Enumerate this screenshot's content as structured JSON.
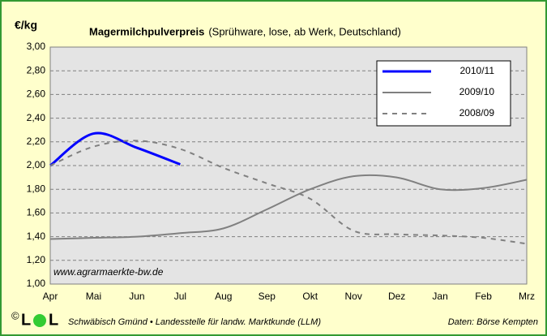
{
  "chart_data": {
    "type": "line",
    "title": "Magermilchpulverpreis",
    "subtitle": "(Sprühware, lose, ab Werk, Deutschland)",
    "y_label": "€/kg",
    "watermark": "www.agrarmaerkte-bw.de",
    "footer_copyright": "©",
    "footer_logo_letter": "L",
    "footer_left": "Schwäbisch Gmünd • Landesstelle für landw. Marktkunde (LLM)",
    "footer_right": "Daten: Börse Kempten",
    "categories": [
      "Apr",
      "Mai",
      "Jun",
      "Jul",
      "Aug",
      "Sep",
      "Okt",
      "Nov",
      "Dez",
      "Jan",
      "Feb",
      "Mrz"
    ],
    "series": [
      {
        "name": "2010/11",
        "color": "#0000ff",
        "dash": "solid",
        "values": [
          2.0,
          2.27,
          2.15,
          2.01,
          null,
          null,
          null,
          null,
          null,
          null,
          null,
          null
        ]
      },
      {
        "name": "2009/10",
        "color": "#808080",
        "dash": "solid",
        "values": [
          1.38,
          1.39,
          1.4,
          1.43,
          1.47,
          1.63,
          1.8,
          1.91,
          1.9,
          1.8,
          1.81,
          1.88
        ]
      },
      {
        "name": "2008/09",
        "color": "#808080",
        "dash": "dashed",
        "values": [
          2.0,
          2.16,
          2.21,
          2.14,
          1.98,
          1.85,
          1.72,
          1.45,
          1.42,
          1.41,
          1.39,
          1.34
        ]
      }
    ],
    "ylim": [
      1.0,
      3.0
    ],
    "yticks": [
      {
        "value": 1.0,
        "label": "1,00"
      },
      {
        "value": 1.2,
        "label": "1,20"
      },
      {
        "value": 1.4,
        "label": "1,40"
      },
      {
        "value": 1.6,
        "label": "1,60"
      },
      {
        "value": 1.8,
        "label": "1,80"
      },
      {
        "value": 2.0,
        "label": "2,00"
      },
      {
        "value": 2.2,
        "label": "2,20"
      },
      {
        "value": 2.4,
        "label": "2,40"
      },
      {
        "value": 2.6,
        "label": "2,60"
      },
      {
        "value": 2.8,
        "label": "2,80"
      },
      {
        "value": 3.0,
        "label": "3,00"
      }
    ],
    "grid": true,
    "legend": "top-right"
  }
}
